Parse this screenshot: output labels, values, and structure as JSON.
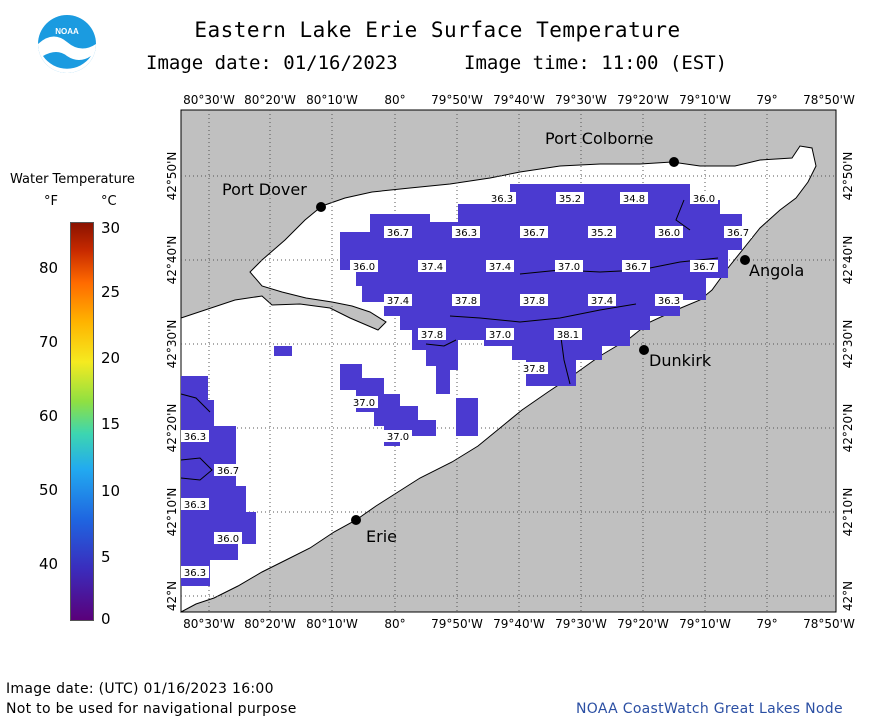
{
  "header": {
    "title": "Eastern Lake Erie Surface Temperature",
    "image_date": "Image date: 01/16/2023",
    "image_time": "Image time: 11:00 (EST)"
  },
  "logo": {
    "text": "NOAA"
  },
  "legend": {
    "title": "Water Temperature",
    "unit_f": "°F",
    "unit_c": "°C",
    "f_ticks": [
      "80",
      "70",
      "60",
      "50",
      "40"
    ],
    "c_ticks": [
      "30",
      "25",
      "20",
      "15",
      "10",
      "5",
      "0"
    ]
  },
  "map": {
    "lon_labels": [
      "80°30'W",
      "80°20'W",
      "80°10'W",
      "80°",
      "79°50'W",
      "79°40'W",
      "79°30'W",
      "79°20'W",
      "79°10'W",
      "79°",
      "78°50'W"
    ],
    "lat_labels": [
      "42°50'N",
      "42°40'N",
      "42°30'N",
      "42°20'N",
      "42°10'N",
      "42°N"
    ],
    "places": [
      "Port Colborne",
      "Port Dover",
      "Angola",
      "Dunkirk",
      "Erie"
    ],
    "temps": [
      "36.3",
      "35.2",
      "34.8",
      "36.0",
      "36.7",
      "36.3",
      "36.7",
      "35.2",
      "36.0",
      "36.7",
      "36.0",
      "37.4",
      "37.4",
      "37.0",
      "36.7",
      "36.7",
      "37.4",
      "37.8",
      "37.8",
      "37.4",
      "36.3",
      "37.8",
      "37.0",
      "38.1",
      "37.8",
      "37.0",
      "37.0",
      "36.3",
      "36.7",
      "36.3",
      "36.0",
      "36.3"
    ]
  },
  "footer": {
    "utc_date": "Image date: (UTC) 01/16/2023  16:00",
    "disclaimer": "Not to be used for navigational purpose",
    "credit": "NOAA CoastWatch Great Lakes Node"
  }
}
